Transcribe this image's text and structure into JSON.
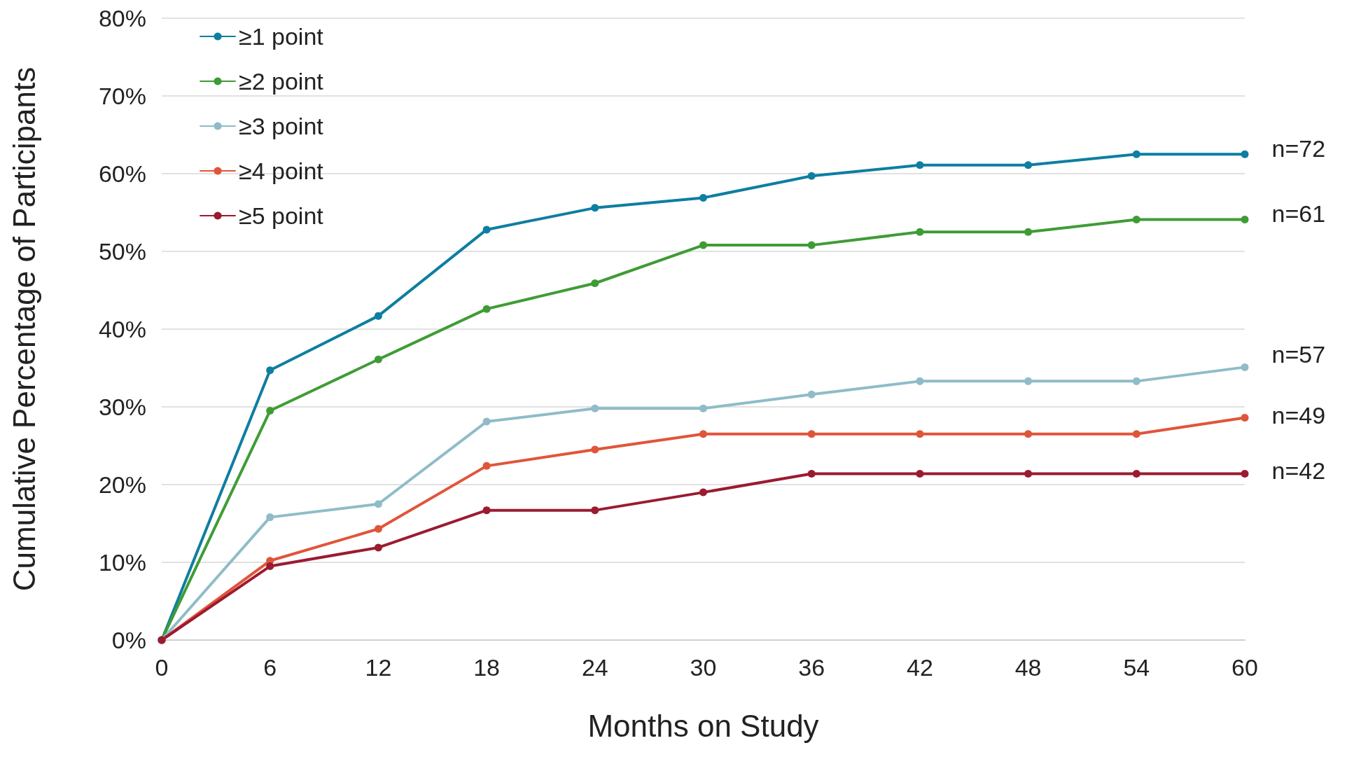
{
  "chart_data": {
    "type": "line",
    "xlabel": "Months on Study",
    "ylabel": "Cumulative Percentage of Participants",
    "x": [
      0,
      6,
      12,
      18,
      24,
      30,
      36,
      42,
      48,
      54,
      60
    ],
    "series": [
      {
        "name": "≥1 point",
        "color": "#0e7ea1",
        "values": [
          0,
          34.7,
          41.7,
          52.8,
          55.6,
          56.9,
          59.7,
          61.1,
          61.1,
          62.5,
          62.5
        ]
      },
      {
        "name": "≥2 point",
        "color": "#3f9c35",
        "values": [
          0,
          29.5,
          36.1,
          42.6,
          45.9,
          50.8,
          50.8,
          52.5,
          52.5,
          54.1,
          54.1
        ]
      },
      {
        "name": "≥3 point",
        "color": "#8fbcc8",
        "values": [
          0,
          15.8,
          17.5,
          28.1,
          29.8,
          29.8,
          31.6,
          33.3,
          33.3,
          33.3,
          35.1
        ]
      },
      {
        "name": "≥4 point",
        "color": "#e0553a",
        "values": [
          0,
          10.2,
          14.3,
          22.4,
          24.5,
          26.5,
          26.5,
          26.5,
          26.5,
          26.5,
          28.6
        ]
      },
      {
        "name": "≥5 point",
        "color": "#9b1b30",
        "values": [
          0,
          9.5,
          11.9,
          16.7,
          16.7,
          19.0,
          21.4,
          21.4,
          21.4,
          21.4,
          21.4
        ]
      }
    ],
    "xlim": [
      0,
      60
    ],
    "xticks": [
      0,
      6,
      12,
      18,
      24,
      30,
      36,
      42,
      48,
      54,
      60
    ],
    "ylim": [
      0,
      80
    ],
    "yticks": [
      {
        "value": 0,
        "label": "0%"
      },
      {
        "value": 10,
        "label": "10%"
      },
      {
        "value": 20,
        "label": "20%"
      },
      {
        "value": 30,
        "label": "30%"
      },
      {
        "value": 40,
        "label": "40%"
      },
      {
        "value": 50,
        "label": "50%"
      },
      {
        "value": 60,
        "label": "60%"
      },
      {
        "value": 70,
        "label": "70%"
      },
      {
        "value": 80,
        "label": "80%"
      }
    ],
    "annotations": [
      "n=72",
      "n=61",
      "n=57",
      "n=49",
      "n=42"
    ],
    "grid": "y",
    "legend": "top left",
    "marker": "circle",
    "line_style": "solid"
  }
}
